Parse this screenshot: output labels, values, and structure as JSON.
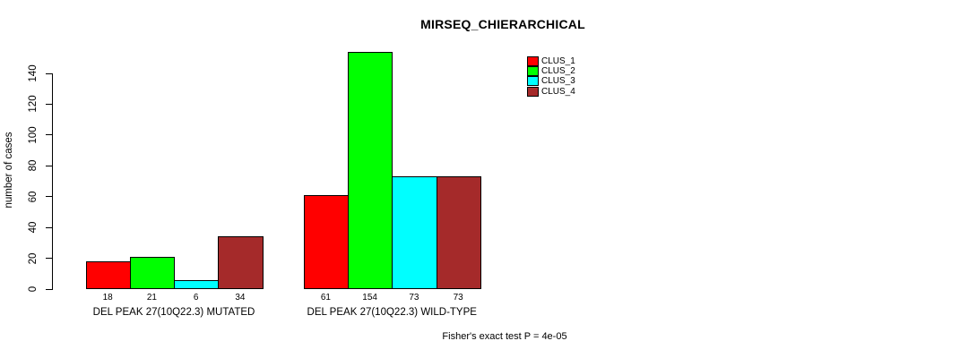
{
  "title": "MIRSEQ_CHIERARCHICAL",
  "y_axis": {
    "label": "number of cases",
    "ticks": [
      0,
      20,
      40,
      60,
      80,
      100,
      120,
      140
    ]
  },
  "legend": {
    "items": [
      {
        "label": "CLUS_1",
        "color": "#ff0000"
      },
      {
        "label": "CLUS_2",
        "color": "#00ff00"
      },
      {
        "label": "CLUS_3",
        "color": "#00ffff"
      },
      {
        "label": "CLUS_4",
        "color": "#a52a2a"
      }
    ]
  },
  "footer": {
    "text": "Fisher's exact test P = 4e-05"
  },
  "chart_data": {
    "type": "bar",
    "title": "MIRSEQ_CHIERARCHICAL",
    "ylabel": "number of cases",
    "yticks": [
      0,
      20,
      40,
      60,
      80,
      100,
      120,
      140
    ],
    "ylim": [
      0,
      157
    ],
    "grid": false,
    "legend_position": "top-right",
    "series": [
      "CLUS_1",
      "CLUS_2",
      "CLUS_3",
      "CLUS_4"
    ],
    "series_colors": [
      "#ff0000",
      "#00ff00",
      "#00ffff",
      "#a52a2a"
    ],
    "categories": [
      "DEL PEAK 27(10Q22.3) MUTATED",
      "DEL PEAK 27(10Q22.3) WILD-TYPE"
    ],
    "groups": [
      {
        "label": "DEL PEAK 27(10Q22.3) MUTATED",
        "values": [
          18,
          21,
          6,
          34
        ]
      },
      {
        "label": "DEL PEAK 27(10Q22.3) WILD-TYPE",
        "values": [
          61,
          154,
          73,
          73
        ]
      }
    ],
    "annotation": "Fisher's exact test P = 4e-05"
  }
}
